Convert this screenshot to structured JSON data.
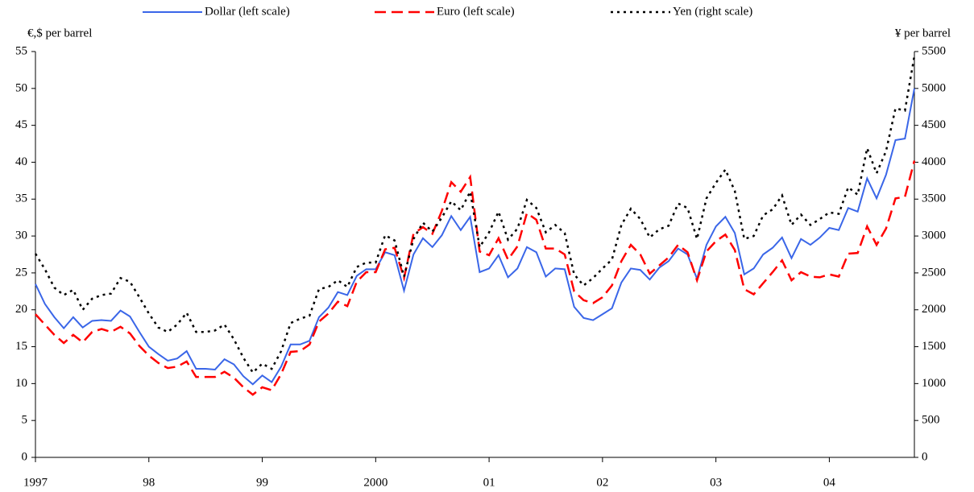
{
  "chart_data": {
    "type": "line",
    "y_label": "€,$ per barrel",
    "y2_label": "¥ per barrel",
    "categories": [
      "1997",
      null,
      null,
      null,
      null,
      null,
      null,
      null,
      null,
      null,
      null,
      null,
      "98",
      null,
      null,
      null,
      null,
      null,
      null,
      null,
      null,
      null,
      null,
      null,
      "99",
      null,
      null,
      null,
      null,
      null,
      null,
      null,
      null,
      null,
      null,
      null,
      "2000",
      null,
      null,
      null,
      null,
      null,
      null,
      null,
      null,
      null,
      null,
      null,
      "01",
      null,
      null,
      null,
      null,
      null,
      null,
      null,
      null,
      null,
      null,
      null,
      "02",
      null,
      null,
      null,
      null,
      null,
      null,
      null,
      null,
      null,
      null,
      null,
      "03",
      null,
      null,
      null,
      null,
      null,
      null,
      null,
      null,
      null,
      null,
      null,
      "04",
      null,
      null,
      null,
      null,
      null,
      null,
      null,
      null,
      null
    ],
    "series": [
      {
        "name": "Dollar (left scale)",
        "color": "#3a66e8",
        "dash": "solid",
        "values": [
          23.5,
          20.8,
          19,
          17.5,
          19,
          17.6,
          18.5,
          18.6,
          18.5,
          19.9,
          19.1,
          17,
          15,
          14,
          13.1,
          13.4,
          14.4,
          12,
          12,
          11.9,
          13.3,
          12.6,
          11,
          9.9,
          11.1,
          10.2,
          12.3,
          15.3,
          15.3,
          15.8,
          19,
          20.3,
          22.4,
          22,
          24.6,
          25.5,
          25.5,
          27.8,
          27.4,
          22.6,
          27.5,
          29.7,
          28.5,
          30.1,
          32.7,
          30.8,
          32.6,
          25.1,
          25.6,
          27.4,
          24.4,
          25.6,
          28.5,
          27.8,
          24.5,
          25.6,
          25.5,
          20.4,
          18.9,
          18.6,
          19.4,
          20.2,
          23.7,
          25.6,
          25.4,
          24.1,
          25.7,
          26.6,
          28.3,
          27.5,
          24.2,
          28.8,
          31.3,
          32.6,
          30.4,
          24.8,
          25.6,
          27.5,
          28.4,
          29.8,
          27,
          29.6,
          28.8,
          29.8,
          31.1,
          30.8,
          33.8,
          33.3,
          37.8,
          35.1,
          38.3,
          43,
          43.2,
          50
        ]
      },
      {
        "name": "Euro (left scale)",
        "color": "#ff0000",
        "dash": "dashed",
        "values": [
          19.4,
          18,
          16.6,
          15.5,
          16.6,
          15.6,
          17,
          17.4,
          17,
          17.7,
          16.8,
          15.1,
          13.8,
          12.8,
          12.1,
          12.3,
          13,
          10.9,
          10.9,
          10.9,
          11.6,
          10.8,
          9.5,
          8.5,
          9.5,
          9.1,
          11.3,
          14.3,
          14.4,
          15.3,
          18.4,
          19.5,
          21.1,
          20.5,
          23.8,
          25.1,
          25.1,
          28.2,
          28.4,
          24.3,
          30.3,
          31.2,
          30.3,
          33.4,
          37.3,
          36,
          38,
          27.9,
          27.4,
          29.7,
          26.8,
          28.6,
          33.1,
          32.2,
          28.3,
          28.3,
          27.5,
          22.5,
          21.3,
          20.9,
          21.7,
          23.3,
          26.6,
          28.8,
          27.5,
          24.9,
          26,
          27.1,
          28.8,
          27.8,
          24,
          27.9,
          29.3,
          30.2,
          28.1,
          22.8,
          22.1,
          23.6,
          25.1,
          26.7,
          24,
          25.1,
          24.5,
          24.4,
          24.8,
          24.5,
          27.6,
          27.7,
          31.3,
          28.8,
          31,
          35.1,
          35.3,
          40.2
        ]
      },
      {
        "name": "Yen (right scale)",
        "color": "#000000",
        "dash": "dotted",
        "axis": "y2",
        "values": [
          2760,
          2550,
          2300,
          2200,
          2270,
          2000,
          2150,
          2200,
          2220,
          2430,
          2380,
          2170,
          1950,
          1760,
          1700,
          1800,
          1960,
          1700,
          1700,
          1720,
          1800,
          1600,
          1350,
          1150,
          1270,
          1200,
          1440,
          1820,
          1880,
          1920,
          2280,
          2310,
          2400,
          2310,
          2580,
          2640,
          2640,
          3010,
          2940,
          2450,
          2960,
          3180,
          3060,
          3250,
          3470,
          3350,
          3600,
          2850,
          3050,
          3330,
          2950,
          3100,
          3490,
          3380,
          3050,
          3150,
          3040,
          2480,
          2330,
          2430,
          2560,
          2680,
          3150,
          3370,
          3230,
          2980,
          3090,
          3140,
          3440,
          3380,
          2960,
          3510,
          3720,
          3900,
          3610,
          2960,
          3000,
          3280,
          3360,
          3550,
          3150,
          3290,
          3150,
          3230,
          3320,
          3300,
          3660,
          3560,
          4190,
          3850,
          4150,
          4730,
          4700,
          5440
        ]
      }
    ],
    "ylim": [
      0,
      55
    ],
    "yticks": [
      0,
      5,
      10,
      15,
      20,
      25,
      30,
      35,
      40,
      45,
      50,
      55
    ],
    "y2lim": [
      0,
      5500
    ],
    "y2ticks": [
      0,
      500,
      1000,
      1500,
      2000,
      2500,
      3000,
      3500,
      4000,
      4500,
      5000,
      5500
    ],
    "grid": false,
    "legend": "top"
  }
}
